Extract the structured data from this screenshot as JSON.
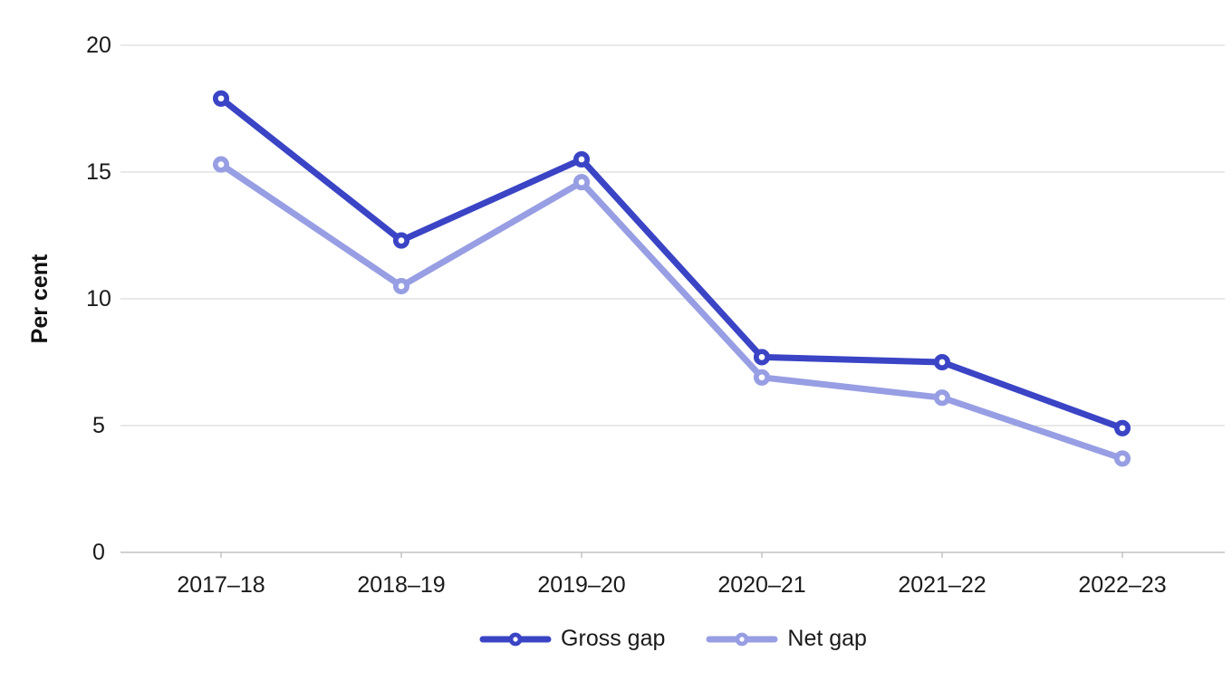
{
  "chart_data": {
    "type": "line",
    "title": "",
    "xlabel": "",
    "ylabel": "Per cent",
    "categories": [
      "2017–18",
      "2018–19",
      "2019–20",
      "2020–21",
      "2021–22",
      "2022–23"
    ],
    "series": [
      {
        "name": "Gross gap",
        "color": "#3a44c5",
        "values": [
          17.9,
          12.3,
          15.5,
          7.7,
          7.5,
          4.9
        ]
      },
      {
        "name": "Net gap",
        "color": "#979ee3",
        "values": [
          15.3,
          10.5,
          14.6,
          6.9,
          6.1,
          3.7
        ]
      }
    ],
    "ylim": [
      0,
      20
    ],
    "yticks": [
      0,
      5,
      10,
      15,
      20
    ],
    "grid": "horizontal",
    "legend_position": "bottom"
  },
  "colors": {
    "background": "#ffffff",
    "gridline": "#dcdcdc",
    "axis_line": "#c2c2c2",
    "tick": "#c2c2c2",
    "text": "#1a1a1a",
    "marker_fill": "#ffffff"
  }
}
